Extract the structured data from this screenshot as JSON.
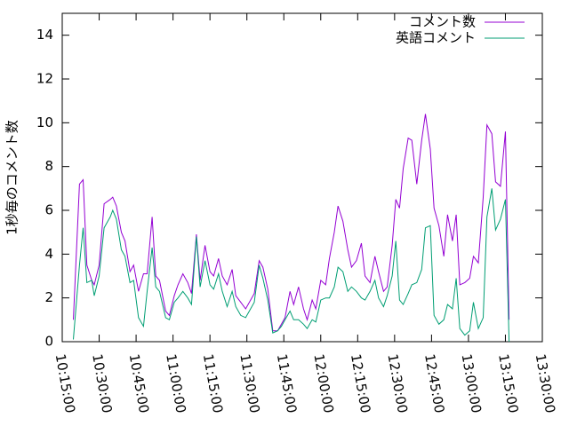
{
  "chart_data": {
    "type": "line",
    "ylabel": "1秒毎のコメント数",
    "x": [
      "10:19:30",
      "10:22:00",
      "10:23:30",
      "10:25:00",
      "10:27:00",
      "10:28:00",
      "10:30:00",
      "10:32:00",
      "10:34:30",
      "10:35:30",
      "10:37:00",
      "10:39:00",
      "10:40:30",
      "10:42:30",
      "10:44:00",
      "10:46:00",
      "10:48:00",
      "10:49:30",
      "10:51:30",
      "10:53:00",
      "10:54:30",
      "10:57:00",
      "10:58:30",
      "11:00:30",
      "11:02:00",
      "11:04:00",
      "11:06:00",
      "11:07:30",
      "11:09:30",
      "11:11:00",
      "11:13:00",
      "11:15:00",
      "11:16:30",
      "11:18:30",
      "11:20:00",
      "11:22:00",
      "11:24:00",
      "11:25:30",
      "11:27:30",
      "11:29:30",
      "11:33:00",
      "11:35:00",
      "11:36:30",
      "11:38:30",
      "11:40:30",
      "11:42:30",
      "11:44:00",
      "11:45:30",
      "11:47:30",
      "11:49:00",
      "11:51:00",
      "11:53:00",
      "11:54:30",
      "11:56:30",
      "11:58:00",
      "12:00:00",
      "12:02:00",
      "12:03:30",
      "12:05:30",
      "12:07:00",
      "12:09:00",
      "12:11:00",
      "12:12:30",
      "12:14:30",
      "12:16:30",
      "12:18:00",
      "12:20:00",
      "12:22:00",
      "12:23:30",
      "12:25:30",
      "12:27:00",
      "12:29:00",
      "12:30:30",
      "12:32:00",
      "12:33:30",
      "12:35:30",
      "12:37:00",
      "12:39:00",
      "12:41:00",
      "12:42:30",
      "12:44:30",
      "12:46:00",
      "12:48:00",
      "12:50:00",
      "12:51:30",
      "12:53:30",
      "12:55:00",
      "12:56:30",
      "12:58:30",
      "13:00:30",
      "13:02:00",
      "13:04:00",
      "13:06:00",
      "13:07:30",
      "13:09:30",
      "13:11:00",
      "13:13:00",
      "13:15:00",
      "13:16:30"
    ],
    "series": [
      {
        "name": "コメント数",
        "color": "#9400d3",
        "values": [
          1,
          7.2,
          7.4,
          3.5,
          2.8,
          2.6,
          3.5,
          6.3,
          6.5,
          6.6,
          6.2,
          5,
          4.6,
          3.2,
          3.5,
          2.3,
          3.1,
          3.1,
          5.7,
          3,
          2.8,
          1.4,
          1.2,
          2.1,
          2.6,
          3.1,
          2.7,
          2.2,
          4.9,
          2.8,
          4.4,
          3.2,
          3,
          3.8,
          3,
          2.6,
          3.3,
          2.1,
          1.8,
          1.5,
          2.2,
          3.7,
          3.4,
          2.4,
          0.5,
          0.5,
          0.8,
          1.1,
          2.3,
          1.7,
          2.5,
          1.5,
          1,
          1.9,
          1.5,
          2.8,
          2.6,
          3.8,
          5,
          6.2,
          5.5,
          4.2,
          3.4,
          3.7,
          4.5,
          3,
          2.7,
          3.9,
          3.2,
          2.3,
          2.5,
          4.4,
          6.5,
          6.1,
          7.9,
          9.3,
          9.2,
          7.2,
          9.2,
          10.4,
          8.8,
          6.1,
          5.3,
          3.9,
          5.8,
          4.6,
          5.8,
          2.6,
          2.7,
          2.9,
          3.9,
          3.6,
          6.6,
          9.9,
          9.5,
          7.3,
          7.1,
          9.6,
          1
        ]
      },
      {
        "name": "英語コメント",
        "color": "#009e73",
        "values": [
          0.1,
          3.5,
          5.2,
          2.7,
          2.8,
          2.1,
          3,
          5.2,
          5.7,
          6,
          5.6,
          4.2,
          3.9,
          2.7,
          2.8,
          1.1,
          0.7,
          2.3,
          4.3,
          2.5,
          2.3,
          1.1,
          1,
          1.8,
          2,
          2.3,
          2,
          1.7,
          4.8,
          2.5,
          3.7,
          2.6,
          2.4,
          3.1,
          2.3,
          1.6,
          2.3,
          1.6,
          1.2,
          1.1,
          1.8,
          3.5,
          2.9,
          1.9,
          0.4,
          0.5,
          0.7,
          1,
          1.4,
          1,
          1,
          0.8,
          0.6,
          1,
          0.9,
          1.9,
          2,
          2,
          2.5,
          3.4,
          3.2,
          2.3,
          2.5,
          2.3,
          2,
          1.9,
          2.3,
          2.8,
          2,
          1.6,
          2.1,
          3,
          4.6,
          1.9,
          1.7,
          2.2,
          2.6,
          2.7,
          3.3,
          5.2,
          5.3,
          1.2,
          0.8,
          1,
          1.7,
          1.5,
          2.9,
          0.6,
          0.3,
          0.5,
          1.8,
          0.6,
          1.1,
          5.7,
          7,
          5.1,
          5.6,
          6.5,
          0
        ]
      }
    ],
    "xlim": [
      "10:15:00",
      "13:30:00"
    ],
    "xticks": [
      "10:15:00",
      "10:30:00",
      "10:45:00",
      "11:00:00",
      "11:15:00",
      "11:30:00",
      "11:45:00",
      "12:00:00",
      "12:15:00",
      "12:30:00",
      "12:45:00",
      "13:00:00",
      "13:15:00",
      "13:30:00"
    ],
    "ylim": [
      0,
      15
    ],
    "yticks": [
      0,
      2,
      4,
      6,
      8,
      10,
      12,
      14
    ],
    "legend": "top-right"
  }
}
